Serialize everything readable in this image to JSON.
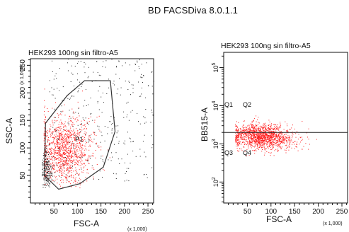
{
  "app": {
    "title": "BD FACSDiva 8.0.1.1"
  },
  "colors": {
    "event": "#ff1a1a",
    "event_outside": "#222222",
    "gate": "#333333",
    "axis": "#111111"
  },
  "chart_data": [
    {
      "type": "scatter",
      "title": "HEK293 100ng sin filtro-A5",
      "xlabel": "FSC-A",
      "ylabel": "SSC-A",
      "x_scale_label": "(x 1,000)",
      "y_scale_label": "(x 1,000)",
      "xlim": [
        0,
        262
      ],
      "ylim": [
        0,
        262
      ],
      "x_ticks": [
        50,
        100,
        150,
        200,
        250
      ],
      "y_ticks": [
        50,
        100,
        150,
        200,
        250
      ],
      "grid": false,
      "gate": {
        "name": "P1",
        "polygon": [
          [
            30,
            50
          ],
          [
            32,
            145
          ],
          [
            78,
            195
          ],
          [
            115,
            222
          ],
          [
            170,
            222
          ],
          [
            180,
            130
          ],
          [
            155,
            65
          ],
          [
            105,
            35
          ],
          [
            60,
            25
          ]
        ]
      },
      "populations": [
        {
          "name": "P1",
          "color": "#ff1a1a",
          "x_center": 70,
          "y_center": 95,
          "x_spread": 30,
          "y_spread": 32,
          "count": 1300
        },
        {
          "name": "debris",
          "color": "#222222",
          "x_center": 33,
          "y_center": 60,
          "x_spread": 6,
          "y_spread": 25,
          "count": 260
        },
        {
          "name": "outside",
          "color": "#222222",
          "x_range": [
            40,
            262
          ],
          "y_range": [
            40,
            262
          ],
          "count": 340
        }
      ]
    },
    {
      "type": "scatter",
      "title": "HEK293 100ng sin filtro-A5",
      "xlabel": "FSC-A",
      "ylabel": "BB515-A",
      "x_scale_label": "(x 1,000)",
      "xlim": [
        0,
        262
      ],
      "ylim_log": [
        1.45,
        5.4
      ],
      "x_ticks": [
        50,
        100,
        150,
        200,
        250
      ],
      "y_tick_labels": [
        "10^2",
        "10^3",
        "10^4",
        "10^5"
      ],
      "y_log_scale": true,
      "grid": false,
      "quadrant": {
        "x": 0,
        "y_log": 3.3
      },
      "quadrant_labels": [
        "Q1",
        "Q2",
        "Q3",
        "Q4"
      ],
      "populations": [
        {
          "name": "events",
          "color": "#ff1a1a",
          "x_center": 80,
          "x_spread": 34,
          "y_log_center": 3.2,
          "y_log_spread": 0.16,
          "count": 1500
        }
      ]
    }
  ]
}
